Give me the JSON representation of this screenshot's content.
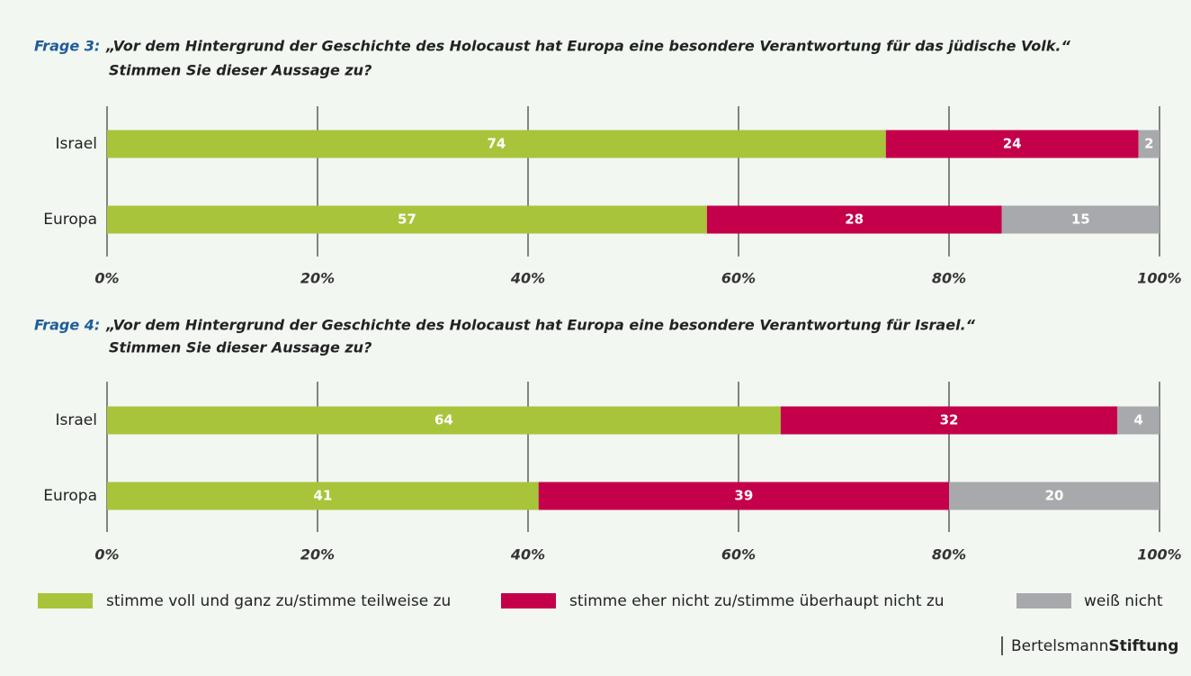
{
  "chart_data": [
    {
      "type": "stacked_barh",
      "label": "Frage 3:",
      "title": "„Vor dem Hintergrund der Geschichte des Holocaust hat Europa eine besondere Verantwortung für das jüdische Volk.“",
      "subtitle": "Stimmen Sie dieser Aussage zu?",
      "categories": [
        "Israel",
        "Europa"
      ],
      "series": [
        {
          "name": "stimme voll und ganz zu/stimme teilweise zu",
          "color": "#a8c43a",
          "values": [
            74,
            57
          ]
        },
        {
          "name": "stimme eher nicht zu/stimme überhaupt nicht zu",
          "color": "#c5004a",
          "values": [
            24,
            28
          ]
        },
        {
          "name": "weiß nicht",
          "color": "#a7a9ac",
          "values": [
            2,
            15
          ]
        }
      ],
      "xlim": [
        0,
        100
      ],
      "xticks": [
        {
          "value": 0,
          "label": "0%"
        },
        {
          "value": 20,
          "label": "20%"
        },
        {
          "value": 40,
          "label": "40%"
        },
        {
          "value": 60,
          "label": "60%"
        },
        {
          "value": 80,
          "label": "80%"
        },
        {
          "value": 100,
          "label": "100%"
        }
      ],
      "grid": true
    },
    {
      "type": "stacked_barh",
      "label": "Frage 4:",
      "title": "„Vor dem Hintergrund der Geschichte des Holocaust hat Europa eine besondere Verantwortung für Israel.“",
      "subtitle": "Stimmen Sie dieser Aussage zu?",
      "categories": [
        "Israel",
        "Europa"
      ],
      "series": [
        {
          "color": "#a8c43a",
          "values": [
            64,
            41
          ]
        },
        {
          "color": "#c5004a",
          "values": [
            32,
            39
          ]
        },
        {
          "color": "#a7a9ac",
          "values": [
            4,
            20
          ]
        }
      ],
      "xlim": [
        0,
        100
      ],
      "xticks": [
        {
          "value": 0,
          "label": "0%"
        },
        {
          "value": 20,
          "label": "20%"
        },
        {
          "value": 40,
          "label": "40%"
        },
        {
          "value": 60,
          "label": "60%"
        },
        {
          "value": 80,
          "label": "80%"
        },
        {
          "value": 100,
          "label": "100%"
        }
      ],
      "grid": true
    }
  ],
  "brand": {
    "light": "Bertelsmann",
    "bold": "Stiftung"
  }
}
